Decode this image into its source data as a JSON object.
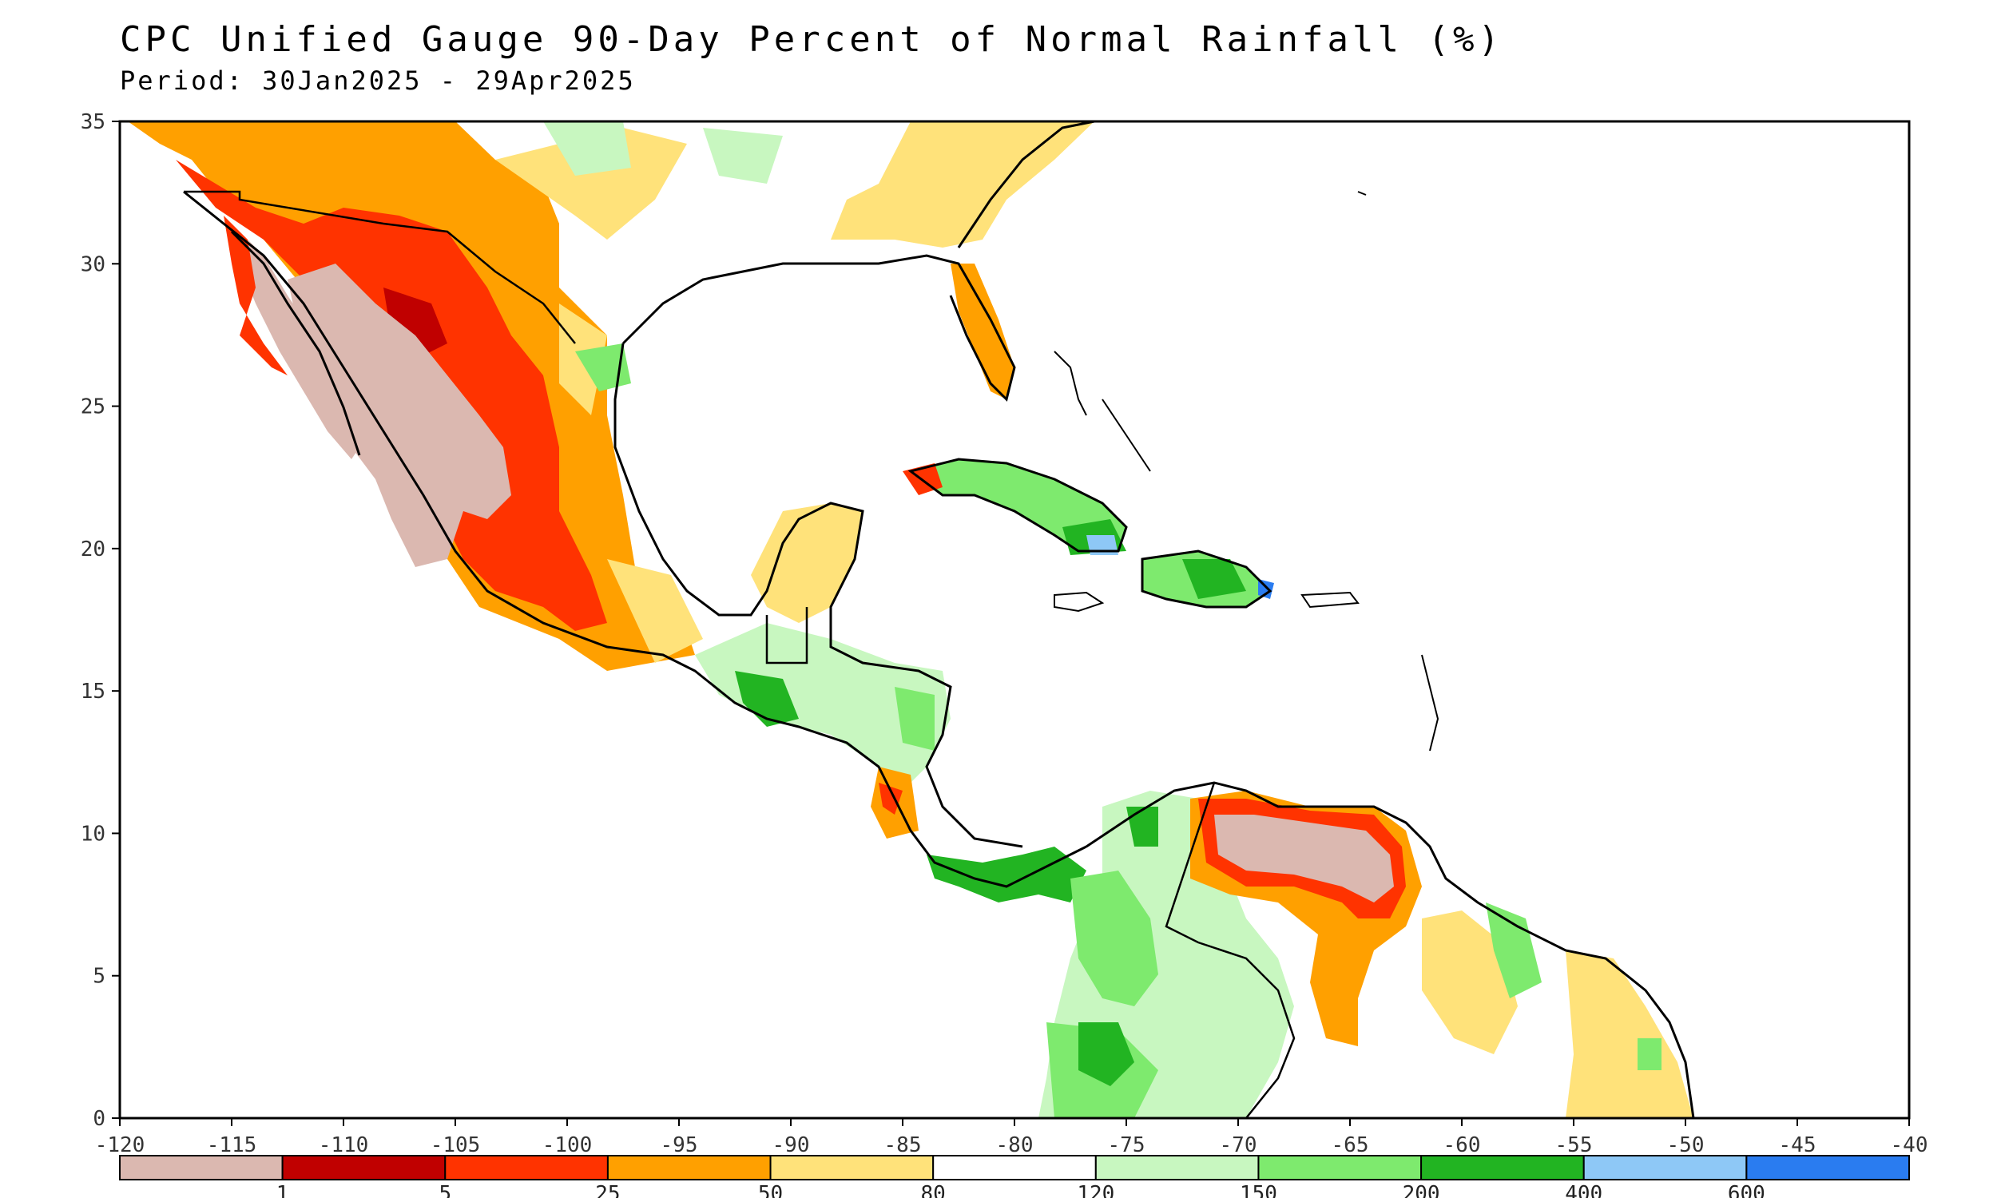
{
  "title": "CPC Unified Gauge 90-Day Percent of Normal Rainfall (%)",
  "subtitle": "Period: 30Jan2025 - 29Apr2025",
  "map": {
    "region": "Mexico, Central America, Caribbean, northern South America",
    "lon_range": [
      -120,
      -40
    ],
    "lat_range": [
      0,
      35
    ],
    "lon_ticks": [
      "-120",
      "-115",
      "-110",
      "-105",
      "-100",
      "-95",
      "-90",
      "-85",
      "-80",
      "-75",
      "-70",
      "-65",
      "-60",
      "-55",
      "-50",
      "-45",
      "-40"
    ],
    "lat_ticks": [
      "0",
      "5",
      "10",
      "15",
      "20",
      "25",
      "30",
      "35"
    ]
  },
  "legend": {
    "colors": [
      "#dbb8b0",
      "#c00000",
      "#ff3300",
      "#ffa000",
      "#ffe27a",
      "#ffffff",
      "#c8f7c0",
      "#7eea6e",
      "#22b422",
      "#8ec8f6",
      "#2a7cf0"
    ],
    "labels": [
      "1",
      "5",
      "25",
      "50",
      "80",
      "120",
      "150",
      "200",
      "400",
      "600"
    ]
  }
}
